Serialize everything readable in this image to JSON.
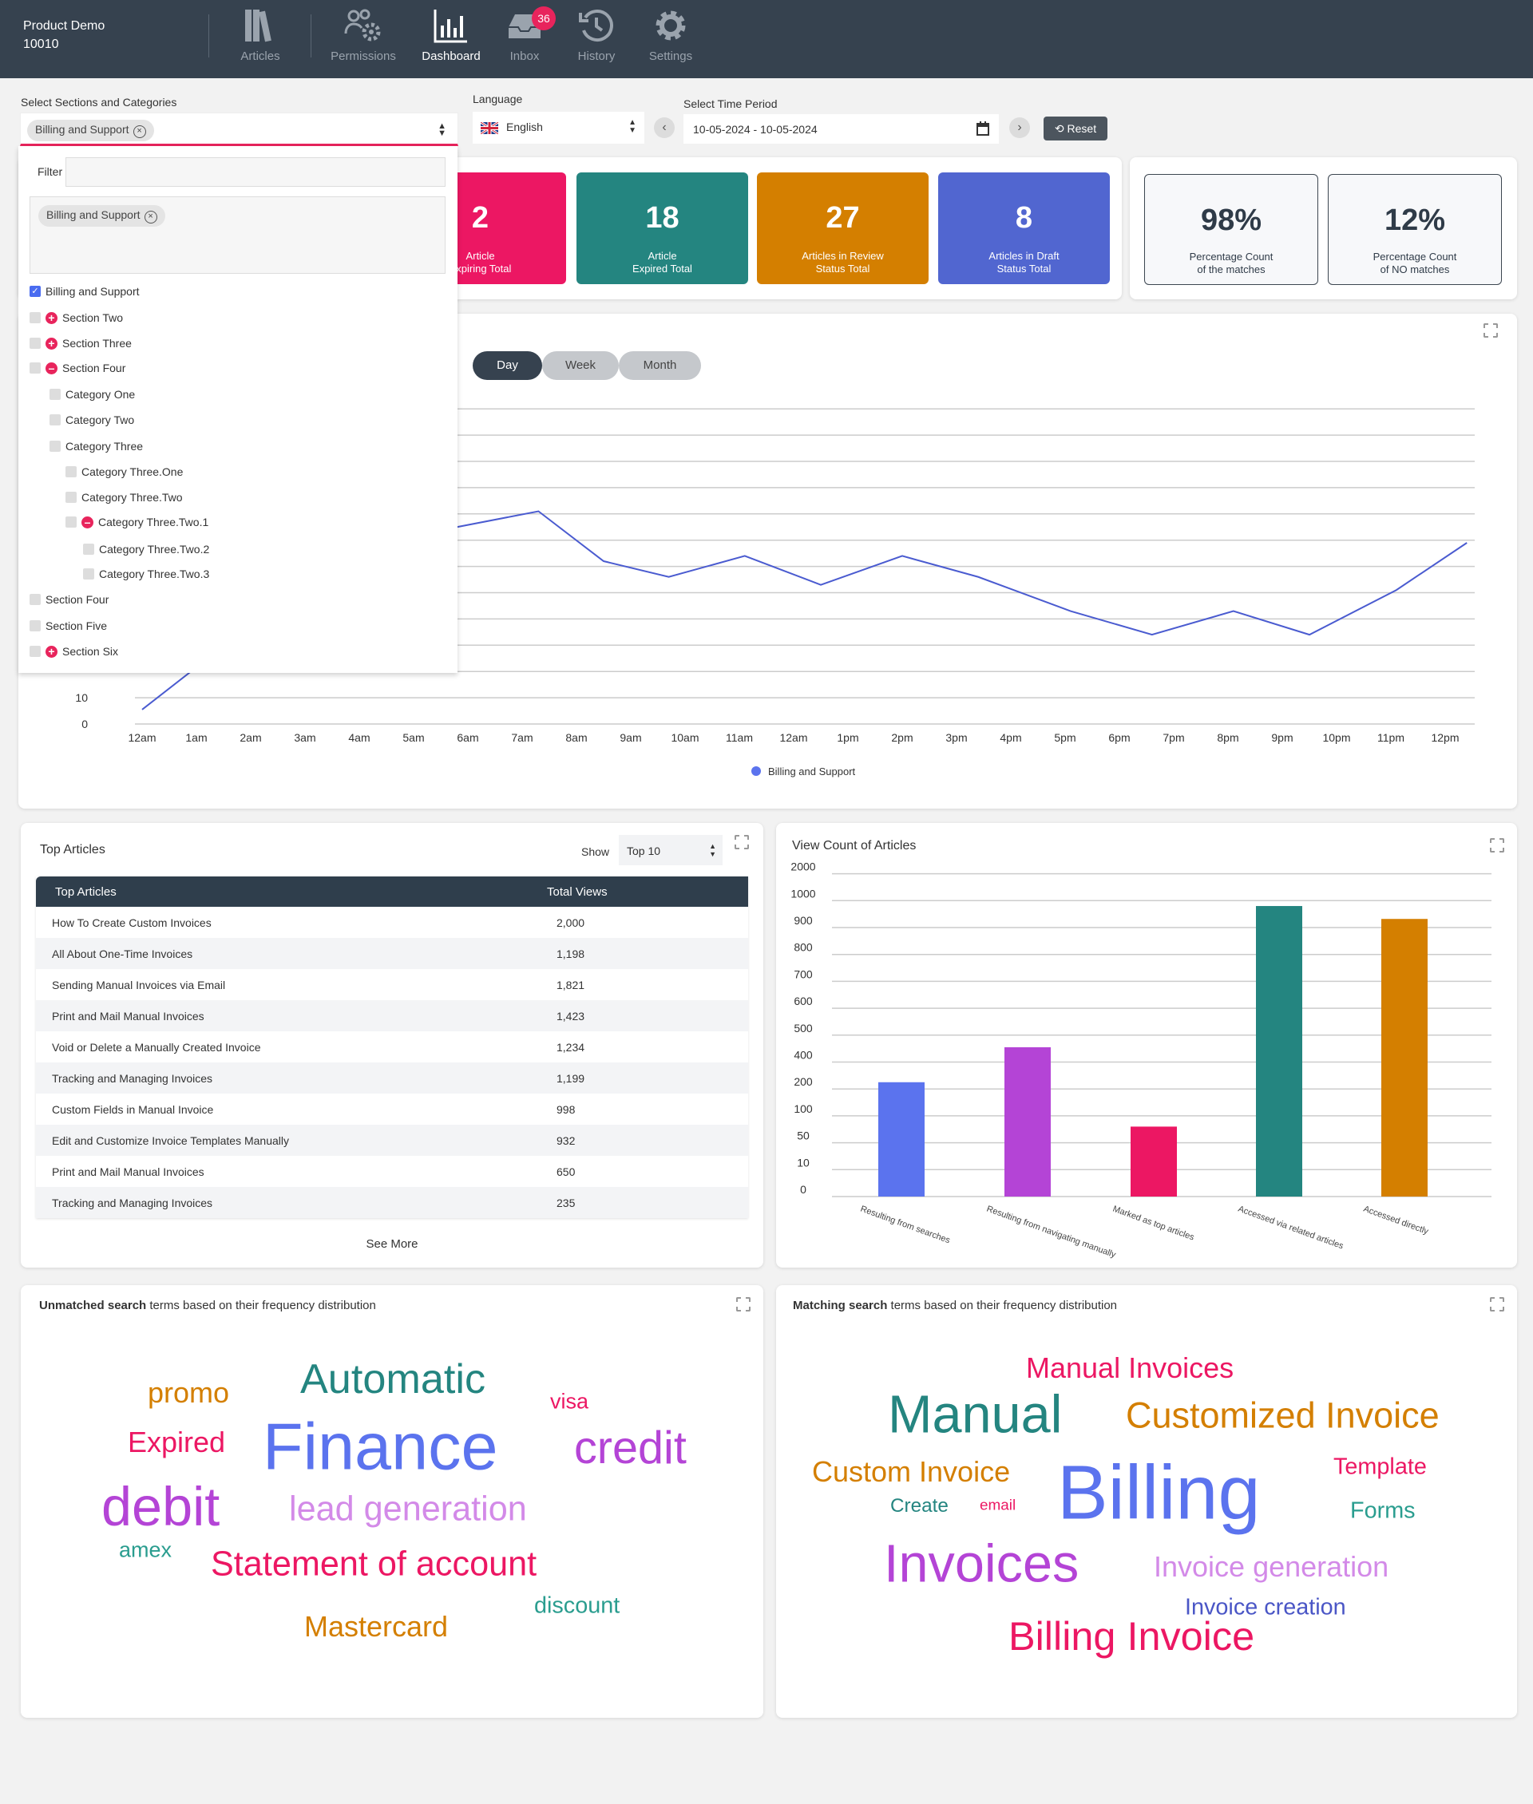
{
  "header": {
    "brand_line1": "Product Demo",
    "brand_line2": "10010",
    "nav": [
      {
        "label": "Articles",
        "icon": "books-icon"
      },
      {
        "label": "Permissions",
        "icon": "users-gear-icon"
      },
      {
        "label": "Dashboard",
        "icon": "bar-chart-icon",
        "active": true
      },
      {
        "label": "Inbox",
        "icon": "inbox-icon",
        "badge": "36"
      },
      {
        "label": "History",
        "icon": "history-icon"
      },
      {
        "label": "Settings",
        "icon": "gear-icon"
      }
    ]
  },
  "filters": {
    "sections_label": "Select Sections and Categories",
    "selected_chip": "Billing and Support",
    "language_label": "Language",
    "language_value": "English",
    "time_label": "Select Time Period",
    "date_range": "10-05-2024 - 10-05-2024",
    "reset_label": "Reset",
    "accent_color": "#e8245c"
  },
  "dropdown": {
    "filter_label": "Filter",
    "filter_value": "",
    "chip": "Billing and Support",
    "items": [
      {
        "label": "Billing and Support",
        "level": 0,
        "checked": true,
        "toggle": ""
      },
      {
        "label": "Section Two",
        "level": 0,
        "checked": false,
        "toggle": "plus"
      },
      {
        "label": "Section Three",
        "level": 0,
        "checked": false,
        "toggle": "plus"
      },
      {
        "label": "Section Four",
        "level": 0,
        "checked": false,
        "toggle": "minus"
      },
      {
        "label": "Category One",
        "level": 1,
        "checked": false,
        "toggle": ""
      },
      {
        "label": "Category Two",
        "level": 1,
        "checked": false,
        "toggle": ""
      },
      {
        "label": "Category Three",
        "level": 1,
        "checked": false,
        "toggle": ""
      },
      {
        "label": "Category Three.One",
        "level": 2,
        "checked": false,
        "toggle": ""
      },
      {
        "label": "Category Three.Two",
        "level": 2,
        "checked": false,
        "toggle": ""
      },
      {
        "label": "Category Three.Two.1",
        "level": 2,
        "checked": false,
        "toggle": "minus"
      },
      {
        "label": "Category Three.Two.2",
        "level": 3,
        "checked": false,
        "toggle": ""
      },
      {
        "label": "Category Three.Two.3",
        "level": 3,
        "checked": false,
        "toggle": ""
      },
      {
        "label": "Section Four",
        "level": 0,
        "checked": false,
        "toggle": ""
      },
      {
        "label": "Section Five",
        "level": 0,
        "checked": false,
        "toggle": ""
      },
      {
        "label": "Section Six",
        "level": 0,
        "checked": false,
        "toggle": "plus"
      }
    ]
  },
  "stats": [
    {
      "value": "2",
      "label1": "Article",
      "label2": "Expiring Total",
      "color": "#ec1763"
    },
    {
      "value": "18",
      "label1": "Article",
      "label2": "Expired Total",
      "color": "#248580"
    },
    {
      "value": "27",
      "label1": "Articles in Review",
      "label2": "Status Total",
      "color": "#d47f00"
    },
    {
      "value": "8",
      "label1": "Articles in Draft",
      "label2": "Status Total",
      "color": "#5166d0"
    }
  ],
  "percentages": [
    {
      "value": "98%",
      "label1": "Percentage Count",
      "label2": "of the matches"
    },
    {
      "value": "12%",
      "label1": "Percentage Count",
      "label2": "of NO matches"
    }
  ],
  "period_buttons": [
    {
      "label": "Day",
      "active": true
    },
    {
      "label": "Week",
      "active": false
    },
    {
      "label": "Month",
      "active": false
    }
  ],
  "top_articles": {
    "title": "Top Articles",
    "show_label": "Show",
    "show_value": "Top 10",
    "col1": "Top Articles",
    "col2": "Total Views",
    "rows": [
      [
        "How To Create Custom Invoices",
        "2,000"
      ],
      [
        "All About One-Time Invoices",
        "1,198"
      ],
      [
        "Sending Manual Invoices via Email",
        "1,821"
      ],
      [
        "Print and Mail Manual Invoices",
        "1,423"
      ],
      [
        "Void or Delete a Manually Created Invoice",
        "1,234"
      ],
      [
        "Tracking and Managing Invoices",
        "1,199"
      ],
      [
        "Custom Fields in Manual Invoice",
        "998"
      ],
      [
        "Edit and Customize Invoice Templates Manually",
        "932"
      ],
      [
        "Print and Mail Manual Invoices",
        "650"
      ],
      [
        "Tracking and Managing Invoices",
        "235"
      ]
    ],
    "see_more": "See More"
  },
  "chart_data": [
    {
      "type": "line",
      "title": "",
      "xlabel": "",
      "ylabel": "",
      "x_tick_labels": [
        "12am",
        "1am",
        "2am",
        "3am",
        "4am",
        "5am",
        "6am",
        "7am",
        "8am",
        "9am",
        "10am",
        "11am",
        "12am",
        "1pm",
        "2pm",
        "3pm",
        "4pm",
        "5pm",
        "6pm",
        "7pm",
        "8pm",
        "9pm",
        "10pm",
        "11pm",
        "12pm"
      ],
      "y_tick_labels_visible": [
        "0",
        "10"
      ],
      "ylim": [
        0,
        120
      ],
      "grid": true,
      "legend": "bottom",
      "color": "#4a5bd0",
      "series": [
        {
          "name": "Billing and Support",
          "x": [
            0,
            0.9,
            5.8,
            7.3,
            8.5,
            9.7,
            11.1,
            12.5,
            14.0,
            15.4,
            17.1,
            18.6,
            20.1,
            21.5,
            23.1,
            24.4
          ],
          "y": [
            5.5,
            20,
            75,
            81,
            62,
            56,
            64,
            53,
            64,
            56,
            43,
            34,
            43,
            34,
            51,
            69
          ]
        }
      ]
    },
    {
      "type": "bar",
      "title": "View Count of Articles",
      "xlabel": "",
      "ylabel": "",
      "y_tick_labels": [
        "0",
        "10",
        "50",
        "100",
        "200",
        "400",
        "500",
        "600",
        "700",
        "800",
        "900",
        "1000",
        "2000"
      ],
      "grid": true,
      "categories": [
        "Resulting from searches",
        "Resulting from navigating manually",
        "Marked as top articles",
        "Accessed via related articles",
        "Accessed directly"
      ],
      "values": [
        250,
        455,
        80,
        980,
        932
      ],
      "colors": [
        "#5b73ee",
        "#b444d6",
        "#ec1763",
        "#248580",
        "#d47f00"
      ]
    }
  ],
  "unmatched_cloud": {
    "title_bold": "Unmatched search",
    "title_rest": " terms based on their frequency distribution",
    "words": [
      {
        "text": "promo",
        "color": "#d47f00"
      },
      {
        "text": "Automatic",
        "color": "#248580"
      },
      {
        "text": "visa",
        "color": "#ec1763"
      },
      {
        "text": "Expired",
        "color": "#ec1763"
      },
      {
        "text": "Finance",
        "color": "#5b73ee"
      },
      {
        "text": "credit",
        "color": "#b444d6"
      },
      {
        "text": "debit",
        "color": "#b444d6"
      },
      {
        "text": "lead generation",
        "color": "#d38ae8"
      },
      {
        "text": "amex",
        "color": "#2a9d8f"
      },
      {
        "text": "Statement of account",
        "color": "#ec1763"
      },
      {
        "text": "discount",
        "color": "#2a9d8f"
      },
      {
        "text": "Mastercard",
        "color": "#d47f00"
      }
    ]
  },
  "matched_cloud": {
    "title_bold": "Matching search",
    "title_rest": " terms based on their frequency distribution",
    "words": [
      {
        "text": "Manual Invoices",
        "color": "#ec1763"
      },
      {
        "text": "Manual",
        "color": "#248580"
      },
      {
        "text": "Customized Invoice",
        "color": "#d47f00"
      },
      {
        "text": "Custom Invoice",
        "color": "#d47f00"
      },
      {
        "text": "Billing",
        "color": "#5b73ee"
      },
      {
        "text": "Template",
        "color": "#ec1763"
      },
      {
        "text": "Create",
        "color": "#248580"
      },
      {
        "text": "email",
        "color": "#ec1763"
      },
      {
        "text": "Forms",
        "color": "#2a9d8f"
      },
      {
        "text": "Invoices",
        "color": "#b444d6"
      },
      {
        "text": "Invoice generation",
        "color": "#d38ae8"
      },
      {
        "text": "Invoice creation",
        "color": "#4a56c6"
      },
      {
        "text": "Billing Invoice",
        "color": "#ec1763"
      }
    ]
  }
}
